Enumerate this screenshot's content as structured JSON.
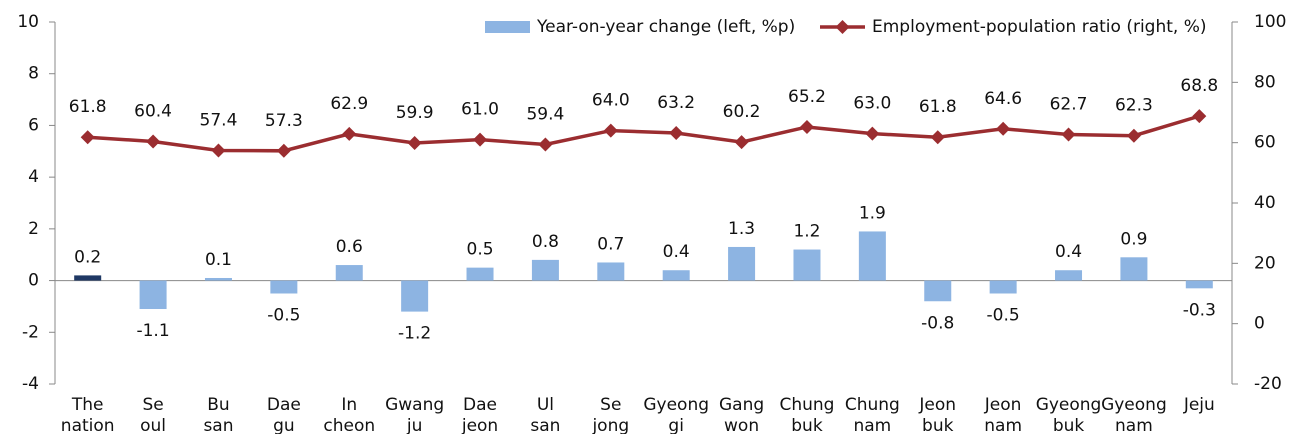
{
  "chart_data": {
    "type": "bar_line",
    "categories": [
      [
        "The",
        "nation"
      ],
      [
        "Se",
        "oul"
      ],
      [
        "Bu",
        "san"
      ],
      [
        "Dae",
        "gu"
      ],
      [
        "In",
        "cheon"
      ],
      [
        "Gwang",
        "ju"
      ],
      [
        "Dae",
        "jeon"
      ],
      [
        "Ul",
        "san"
      ],
      [
        "Se",
        "jong"
      ],
      [
        "Gyeong",
        "gi"
      ],
      [
        "Gang",
        "won"
      ],
      [
        "Chung",
        "buk"
      ],
      [
        "Chung",
        "nam"
      ],
      [
        "Jeon",
        "buk"
      ],
      [
        "Jeon",
        "nam"
      ],
      [
        "Gyeong",
        "buk"
      ],
      [
        "Gyeong",
        "nam"
      ],
      [
        "Jeju"
      ]
    ],
    "series": [
      {
        "name": "Year-on-year change (left, %p)",
        "type": "bar",
        "color": "#8db4e2",
        "colors": [
          "#1f3864",
          "#8db4e2",
          "#8db4e2",
          "#8db4e2",
          "#8db4e2",
          "#8db4e2",
          "#8db4e2",
          "#8db4e2",
          "#8db4e2",
          "#8db4e2",
          "#8db4e2",
          "#8db4e2",
          "#8db4e2",
          "#8db4e2",
          "#8db4e2",
          "#8db4e2",
          "#8db4e2",
          "#8db4e2"
        ],
        "values": [
          0.2,
          -1.1,
          0.1,
          -0.5,
          0.6,
          -1.2,
          0.5,
          0.8,
          0.7,
          0.4,
          1.3,
          1.2,
          1.9,
          -0.8,
          -0.5,
          0.4,
          0.9,
          -0.3
        ]
      },
      {
        "name": "Employment-population ratio (right, %)",
        "type": "line",
        "axis": "y2",
        "color": "#9b2d30",
        "values": [
          61.8,
          60.4,
          57.4,
          57.3,
          62.9,
          59.9,
          61.0,
          59.4,
          64.0,
          63.2,
          60.2,
          65.2,
          63.0,
          61.8,
          64.6,
          62.7,
          62.3,
          68.8
        ],
        "value_labels": [
          "61.8",
          "60.4",
          "57.4",
          "57.3",
          "62.9",
          "59.9",
          "61.0",
          "59.4",
          "64.0",
          "63.2",
          "60.2",
          "65.2",
          "63.0",
          "61.8",
          "64.6",
          "62.7",
          "62.3",
          "68.8"
        ]
      }
    ],
    "ylim": [
      -4,
      10
    ],
    "yticks": [
      -4,
      -2,
      0,
      2,
      4,
      6,
      8,
      10
    ],
    "y2lim": [
      -20,
      100
    ],
    "y2ticks": [
      -20,
      0,
      20,
      40,
      60,
      80,
      100
    ],
    "grid": false,
    "legend": "upper right"
  }
}
